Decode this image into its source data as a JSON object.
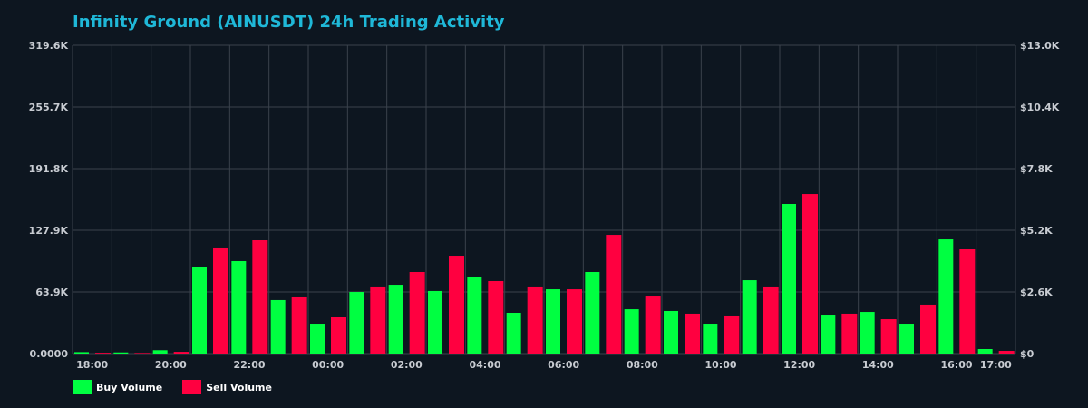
{
  "chart_data": {
    "type": "bar",
    "title": "Infinity Ground (AINUSDT) 24h Trading Activity",
    "categories": [
      "18:00",
      "19:00",
      "20:00",
      "21:00",
      "22:00",
      "23:00",
      "00:00",
      "01:00",
      "02:00",
      "03:00",
      "04:00",
      "05:00",
      "06:00",
      "07:00",
      "08:00",
      "09:00",
      "10:00",
      "11:00",
      "12:00",
      "13:00",
      "14:00",
      "15:00",
      "16:00",
      "17:00"
    ],
    "x_tick_labels": [
      "18:00",
      "20:00",
      "22:00",
      "00:00",
      "02:00",
      "04:00",
      "06:00",
      "08:00",
      "10:00",
      "12:00",
      "14:00",
      "16:00",
      "17:00"
    ],
    "series": [
      {
        "name": "Buy Volume",
        "color": "#00ff41",
        "values": [
          1500,
          1200,
          3500,
          89300,
          95900,
          55500,
          31000,
          63900,
          71400,
          64900,
          79000,
          42300,
          66700,
          84600,
          46000,
          44200,
          31000,
          76100,
          155100,
          40400,
          43200,
          31000,
          118400,
          4700
        ]
      },
      {
        "name": "Sell Volume",
        "color": "#ff0040",
        "values": [
          800,
          600,
          1800,
          110000,
          117500,
          58300,
          37600,
          69600,
          84600,
          101500,
          75200,
          69600,
          66700,
          123100,
          59200,
          41400,
          39500,
          69600,
          165400,
          41400,
          35700,
          50800,
          108100,
          2800
        ]
      }
    ],
    "ylim": [
      0,
      319600
    ],
    "y_tick_labels": [
      "0.0000",
      "63.9K",
      "127.9K",
      "191.8K",
      "255.7K",
      "319.6K"
    ],
    "y2lim": [
      0,
      13000
    ],
    "y2_tick_labels": [
      "$0",
      "$2.6K",
      "$5.2K",
      "$7.8K",
      "$10.4K",
      "$13.0K"
    ],
    "grid": true,
    "legend_position": "bottom-left",
    "background": "#0d1620",
    "grid_color": "#3a424c"
  }
}
